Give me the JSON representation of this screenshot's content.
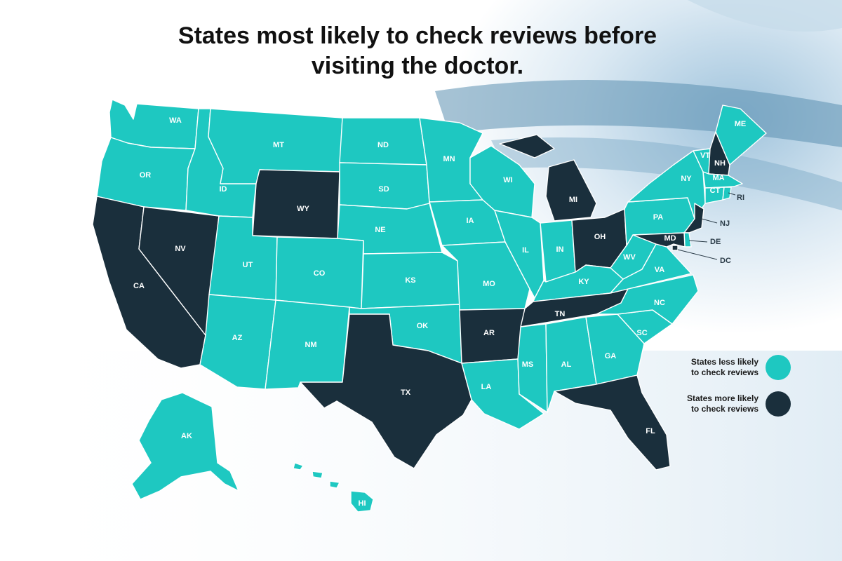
{
  "title": {
    "line1": "States most likely to check reviews before",
    "line2": "visiting the doctor."
  },
  "colors": {
    "less_likely": "#1ec8c1",
    "more_likely": "#1a2f3c"
  },
  "legend": [
    {
      "line1": "States less likely",
      "line2": "to check reviews",
      "category": "less_likely"
    },
    {
      "line1": "States more likely",
      "line2": "to check reviews",
      "category": "more_likely"
    }
  ],
  "states": {
    "WA": "less_likely",
    "OR": "less_likely",
    "CA": "more_likely",
    "NV": "more_likely",
    "ID": "less_likely",
    "MT": "less_likely",
    "WY": "more_likely",
    "UT": "less_likely",
    "CO": "less_likely",
    "AZ": "less_likely",
    "NM": "less_likely",
    "ND": "less_likely",
    "SD": "less_likely",
    "NE": "less_likely",
    "KS": "less_likely",
    "OK": "less_likely",
    "TX": "more_likely",
    "MN": "less_likely",
    "IA": "less_likely",
    "MO": "less_likely",
    "AR": "more_likely",
    "LA": "less_likely",
    "WI": "less_likely",
    "IL": "less_likely",
    "MI": "more_likely",
    "IN": "less_likely",
    "OH": "more_likely",
    "KY": "less_likely",
    "TN": "more_likely",
    "MS": "less_likely",
    "AL": "less_likely",
    "GA": "less_likely",
    "FL": "more_likely",
    "SC": "less_likely",
    "NC": "less_likely",
    "VA": "less_likely",
    "WV": "less_likely",
    "PA": "less_likely",
    "NY": "less_likely",
    "VT": "less_likely",
    "NH": "more_likely",
    "ME": "less_likely",
    "MA": "less_likely",
    "RI": "less_likely",
    "CT": "less_likely",
    "NJ": "more_likely",
    "DE": "less_likely",
    "MD": "more_likely",
    "DC": "more_likely",
    "AK": "less_likely",
    "HI": "less_likely"
  }
}
